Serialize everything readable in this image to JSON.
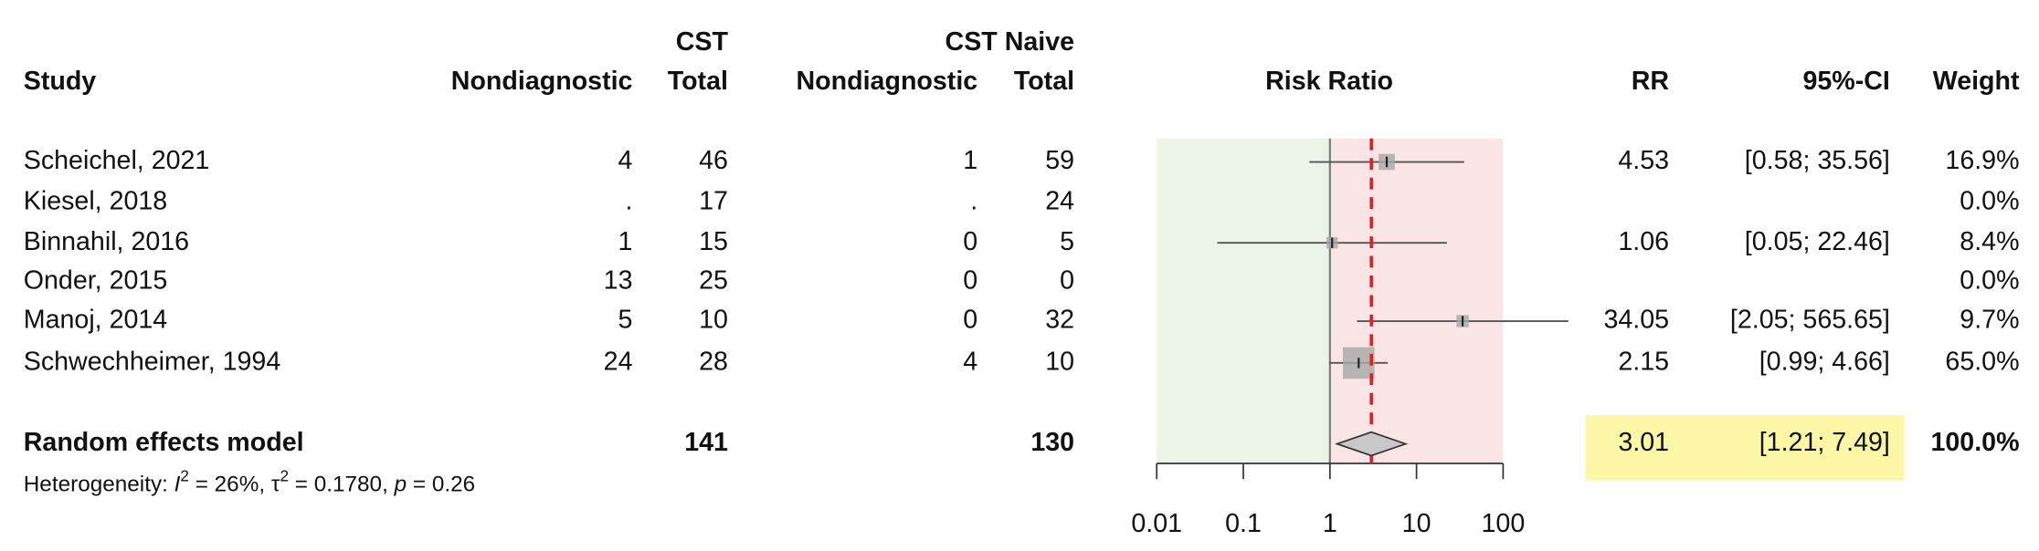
{
  "chart_data": {
    "type": "forest",
    "columns": {
      "study": "Study",
      "group1": "CST",
      "group2": "CST Naive",
      "events": "Nondiagnostic",
      "total": "Total",
      "plot": "Risk Ratio",
      "rr": "RR",
      "ci": "95%-CI",
      "weight": "Weight"
    },
    "studies": [
      {
        "name": "Scheichel, 2021",
        "events1": 4,
        "total1": 46,
        "events2": 1,
        "total2": 59,
        "rr": 4.53,
        "lower": 0.58,
        "upper": 35.56,
        "ci_label": "[0.58; 35.56]",
        "weight": 16.9,
        "weight_label": "16.9%"
      },
      {
        "name": "Kiesel, 2018",
        "events1": ".",
        "total1": 17,
        "events2": ".",
        "total2": 24,
        "rr": null,
        "lower": null,
        "upper": null,
        "ci_label": null,
        "weight": 0,
        "weight_label": "0.0%"
      },
      {
        "name": "Binnahil, 2016",
        "events1": 1,
        "total1": 15,
        "events2": 0,
        "total2": 5,
        "rr": 1.06,
        "lower": 0.05,
        "upper": 22.46,
        "ci_label": "[0.05; 22.46]",
        "weight": 8.4,
        "weight_label": "8.4%"
      },
      {
        "name": "Onder, 2015",
        "events1": 13,
        "total1": 25,
        "events2": 0,
        "total2": 0,
        "rr": null,
        "lower": null,
        "upper": null,
        "ci_label": null,
        "weight": 0,
        "weight_label": "0.0%"
      },
      {
        "name": "Manoj, 2014",
        "events1": 5,
        "total1": 10,
        "events2": 0,
        "total2": 32,
        "rr": 34.05,
        "lower": 2.05,
        "upper": 565.65,
        "ci_label": "[2.05; 565.65]",
        "weight": 9.7,
        "weight_label": "9.7%"
      },
      {
        "name": "Schwechheimer, 1994",
        "events1": 24,
        "total1": 28,
        "events2": 4,
        "total2": 10,
        "rr": 2.15,
        "lower": 0.99,
        "upper": 4.66,
        "ci_label": "[0.99; 4.66]",
        "weight": 65.0,
        "weight_label": "65.0%"
      }
    ],
    "summary": {
      "name": "Random effects model",
      "total1": 141,
      "total2": 130,
      "rr": 3.01,
      "lower": 1.21,
      "upper": 7.49,
      "ci_label": "[1.21; 7.49]",
      "weight": 100,
      "weight_label": "100.0%"
    },
    "heterogeneity": [
      "Heterogeneity: ",
      "I",
      "2",
      " = 26%, ",
      "τ",
      "2",
      " = 0.1780, ",
      "p",
      " = 0.26"
    ],
    "xscale": "log",
    "xlim": [
      0.01,
      100
    ],
    "xticks": [
      0.01,
      0.1,
      1,
      10,
      100
    ],
    "colors": {
      "box": "#a8a8a8",
      "summary_line": "#e02020",
      "left_fill": "#ecf4e8",
      "right_fill": "#f9e5e5",
      "highlight": "#fbf7a6",
      "diamond": "#c8c8c8"
    }
  }
}
